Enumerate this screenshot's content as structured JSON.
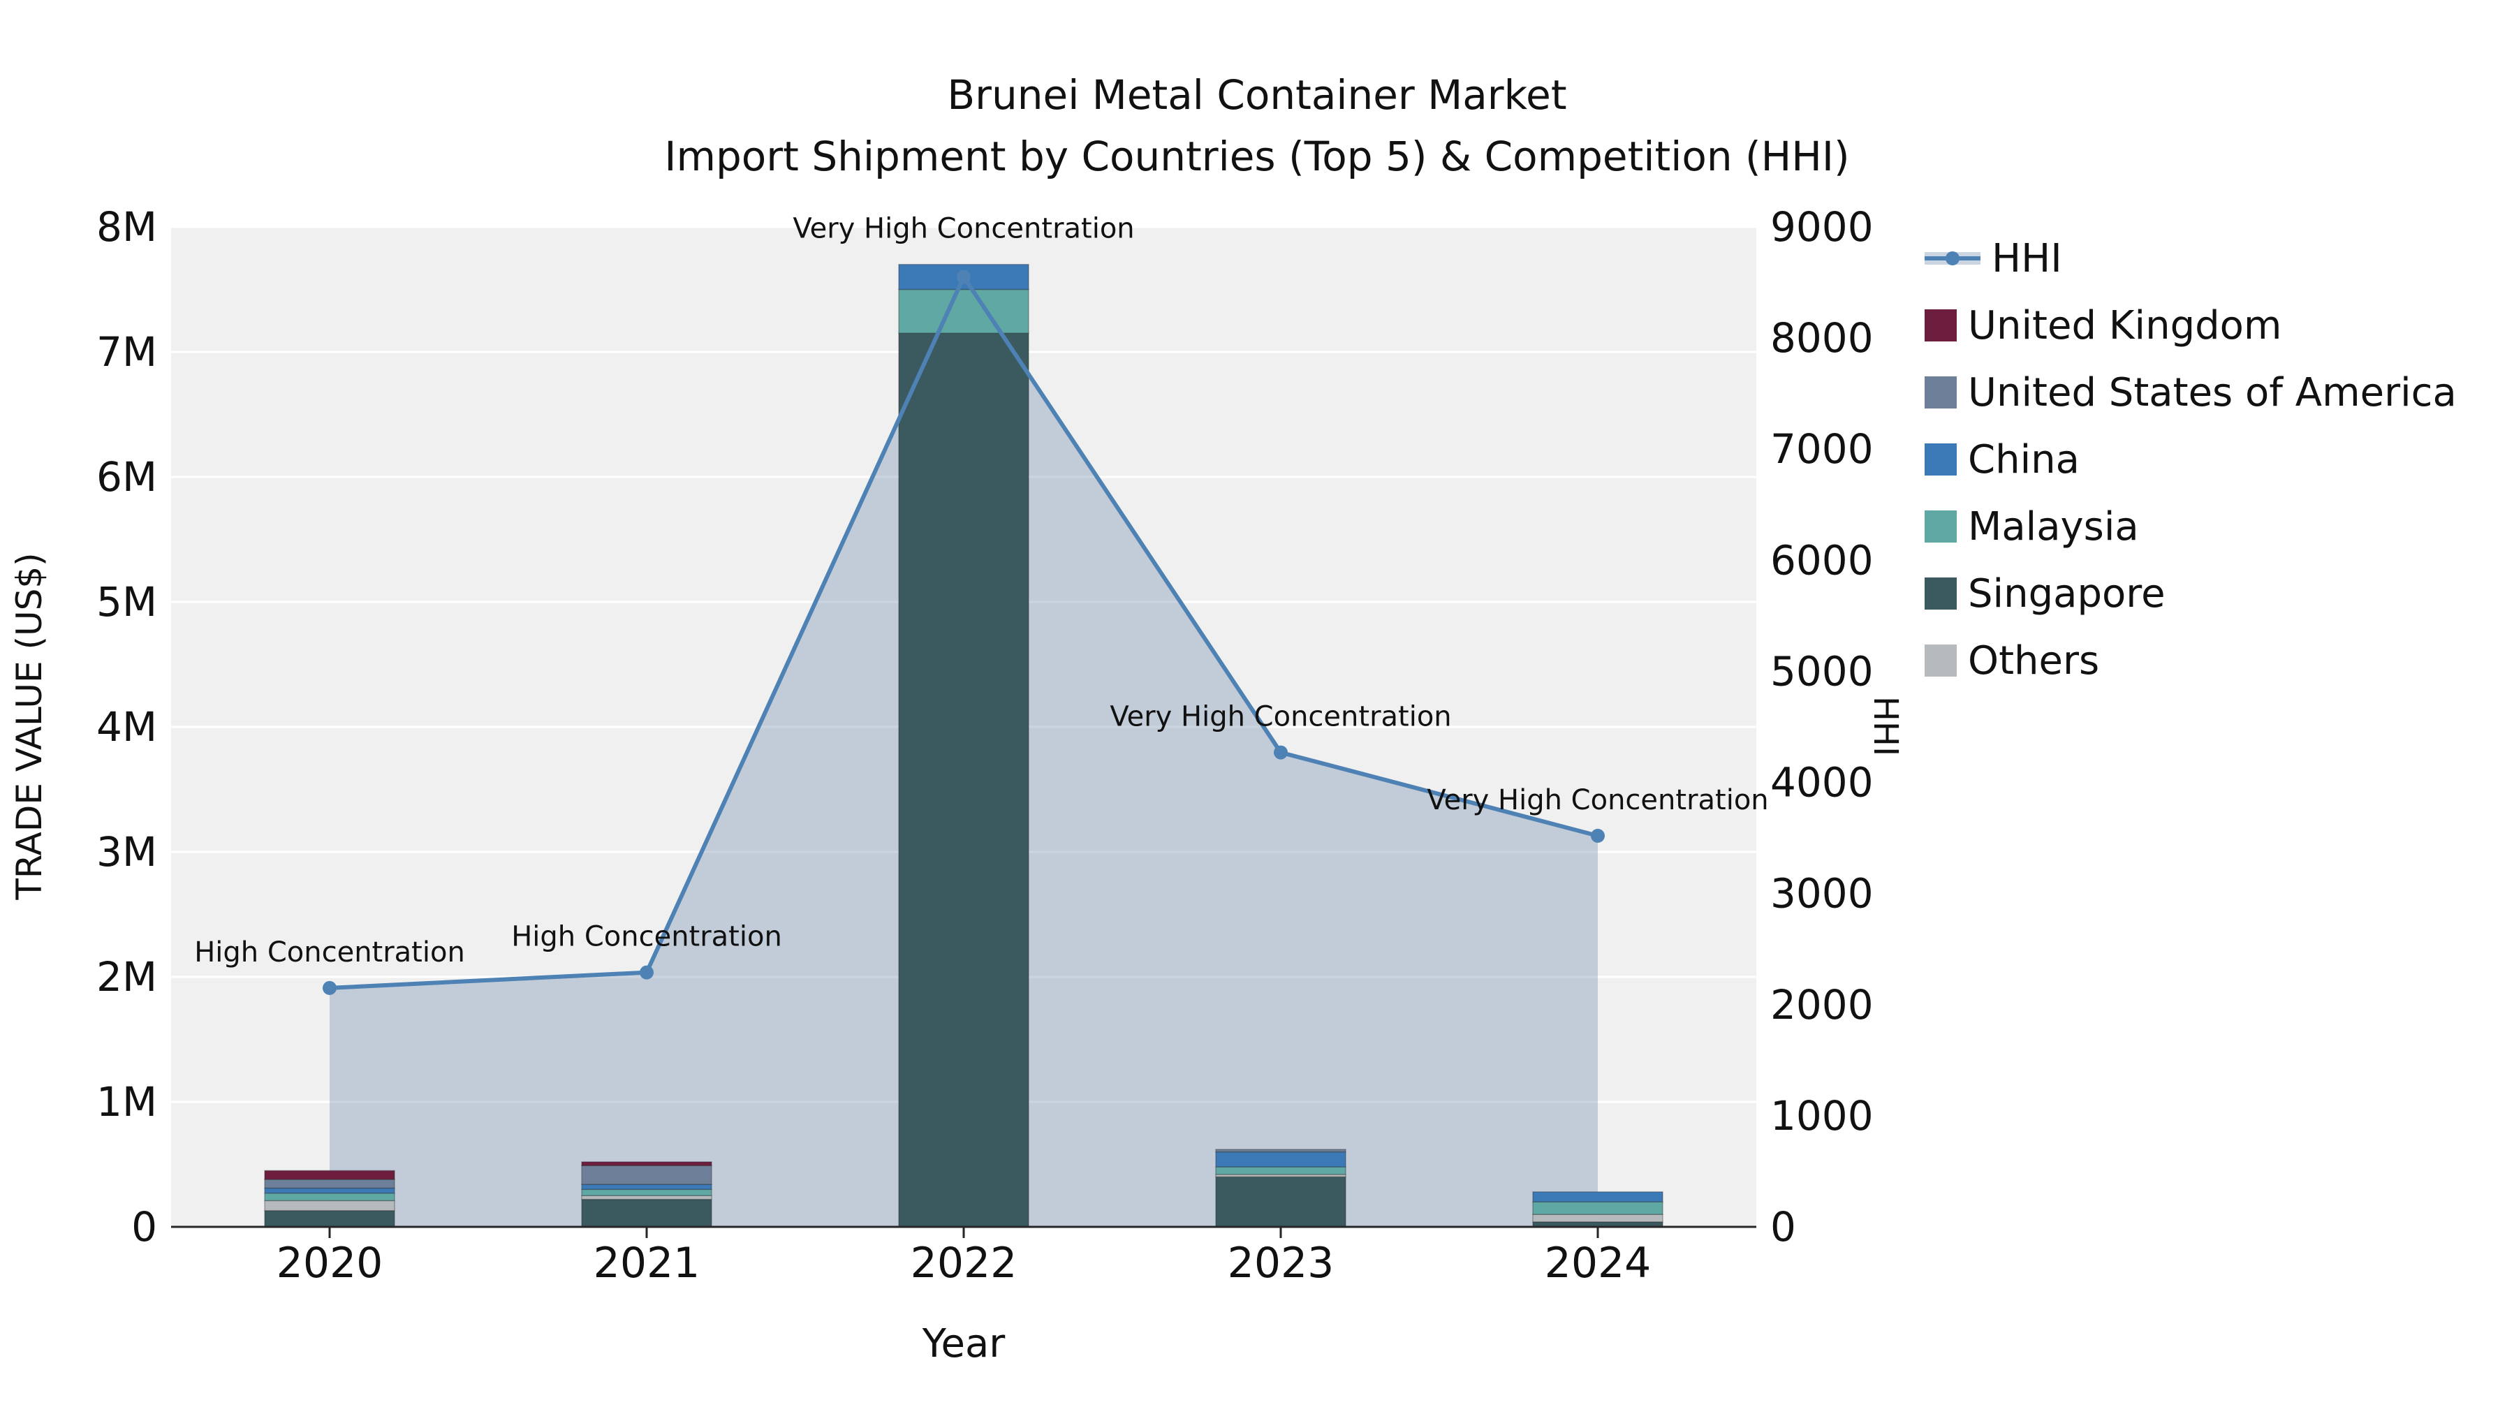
{
  "title": {
    "line1": "Brunei Metal Container Market",
    "line2": "Import Shipment by Countries (Top 5) & Competition (HHI)"
  },
  "axes": {
    "y_left_label": "TRADE VALUE (US$)",
    "y_right_label": "HHI",
    "x_label": "Year"
  },
  "legend": {
    "items": [
      "HHI",
      "United Kingdom",
      "United States of America",
      "China",
      "Malaysia",
      "Singapore",
      "Others"
    ]
  },
  "chart_data": {
    "type": "bar+line",
    "title": "Brunei Metal Container Market — Import Shipment by Countries (Top 5) & Competition (HHI)",
    "categories": [
      2020,
      2021,
      2022,
      2023,
      2024
    ],
    "bar_value_unit": "US$",
    "stacked_series_bottom_to_top": true,
    "series": [
      {
        "name": "Singapore",
        "color": "#3b5a60",
        "values": [
          130000,
          220000,
          7150000,
          400000,
          40000
        ]
      },
      {
        "name": "Others",
        "color": "#b7babd",
        "values": [
          80000,
          30000,
          0,
          20000,
          60000
        ]
      },
      {
        "name": "Malaysia",
        "color": "#5fa8a4",
        "values": [
          60000,
          50000,
          350000,
          60000,
          100000
        ]
      },
      {
        "name": "China",
        "color": "#3c7ab7",
        "values": [
          40000,
          40000,
          200000,
          120000,
          80000
        ]
      },
      {
        "name": "United States of America",
        "color": "#6e8099",
        "values": [
          70000,
          150000,
          0,
          20000,
          0
        ]
      },
      {
        "name": "United Kingdom",
        "color": "#6d1e3f",
        "values": [
          70000,
          30000,
          0,
          0,
          0
        ]
      }
    ],
    "line": {
      "name": "HHI",
      "color": "#4e82b4",
      "area_fill": "#7a95b5",
      "axis": "right",
      "values": [
        2150,
        2290,
        8550,
        4270,
        3520
      ]
    },
    "annotations": [
      {
        "x": 2020,
        "text": "High Concentration"
      },
      {
        "x": 2021,
        "text": "High Concentration"
      },
      {
        "x": 2022,
        "text": "Very High Concentration"
      },
      {
        "x": 2023,
        "text": "Very High Concentration"
      },
      {
        "x": 2024,
        "text": "Very High Concentration"
      }
    ],
    "ylim_left": [
      0,
      8000000
    ],
    "ylim_right": [
      0,
      9000
    ],
    "left_tick_labels": [
      "0",
      "1M",
      "2M",
      "3M",
      "4M",
      "5M",
      "6M",
      "7M",
      "8M"
    ],
    "right_tick_labels": [
      "0",
      "1000",
      "2000",
      "3000",
      "4000",
      "5000",
      "6000",
      "7000",
      "8000",
      "9000"
    ],
    "xlabel": "Year",
    "ylabel_left": "TRADE VALUE (US$)",
    "ylabel_right": "HHI",
    "grid": true,
    "legend_position": "right"
  }
}
